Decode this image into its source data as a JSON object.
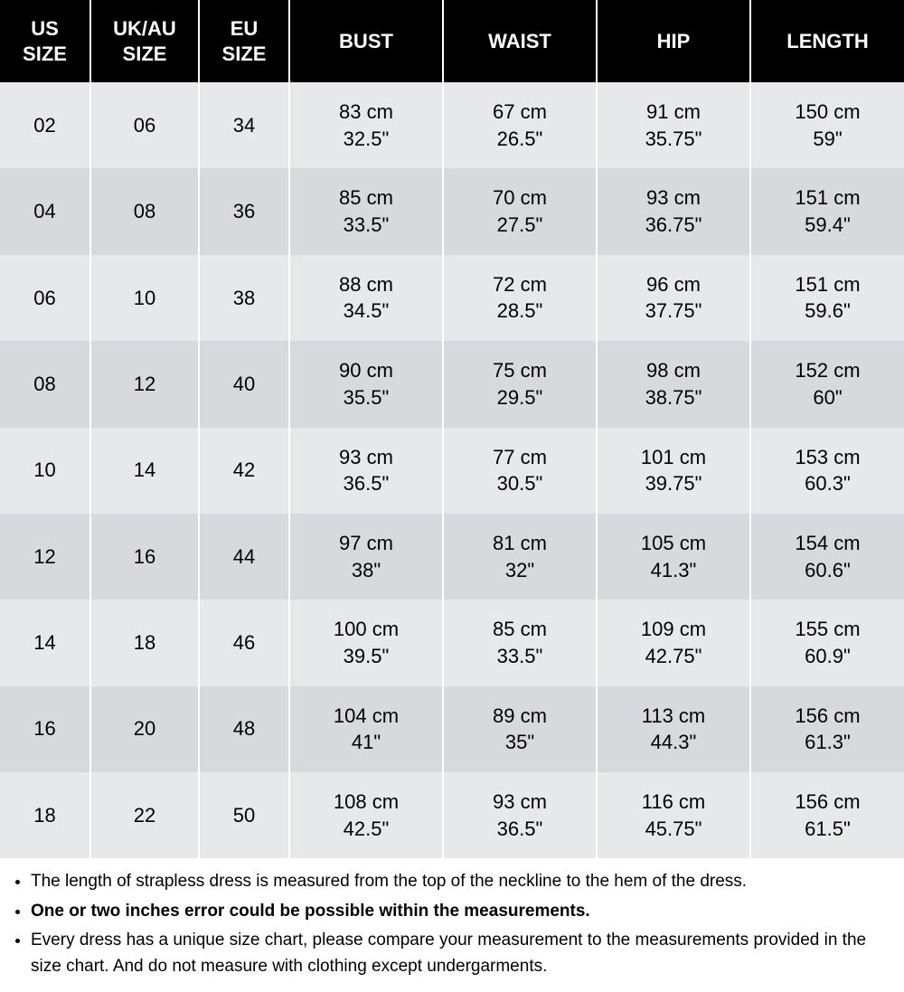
{
  "table": {
    "columns": [
      {
        "key": "us",
        "line1": "US",
        "line2": "SIZE",
        "type": "single"
      },
      {
        "key": "ukau",
        "line1": "UK/AU",
        "line2": "SIZE",
        "type": "single"
      },
      {
        "key": "eu",
        "line1": "EU",
        "line2": "SIZE",
        "type": "single"
      },
      {
        "key": "bust",
        "line1": "BUST",
        "line2": "",
        "type": "dual"
      },
      {
        "key": "waist",
        "line1": "WAIST",
        "line2": "",
        "type": "dual"
      },
      {
        "key": "hip",
        "line1": "HIP",
        "line2": "",
        "type": "dual"
      },
      {
        "key": "length",
        "line1": "LENGTH",
        "line2": "",
        "type": "dual"
      }
    ],
    "rows": [
      {
        "us": "02",
        "ukau": "06",
        "eu": "34",
        "bust": {
          "cm": "83 cm",
          "in": "32.5\""
        },
        "waist": {
          "cm": "67 cm",
          "in": "26.5\""
        },
        "hip": {
          "cm": "91 cm",
          "in": "35.75\""
        },
        "length": {
          "cm": "150 cm",
          "in": "59\""
        }
      },
      {
        "us": "04",
        "ukau": "08",
        "eu": "36",
        "bust": {
          "cm": "85 cm",
          "in": "33.5\""
        },
        "waist": {
          "cm": "70 cm",
          "in": "27.5\""
        },
        "hip": {
          "cm": "93 cm",
          "in": "36.75\""
        },
        "length": {
          "cm": "151 cm",
          "in": "59.4\""
        }
      },
      {
        "us": "06",
        "ukau": "10",
        "eu": "38",
        "bust": {
          "cm": "88 cm",
          "in": "34.5\""
        },
        "waist": {
          "cm": "72 cm",
          "in": "28.5\""
        },
        "hip": {
          "cm": "96 cm",
          "in": "37.75\""
        },
        "length": {
          "cm": "151 cm",
          "in": "59.6\""
        }
      },
      {
        "us": "08",
        "ukau": "12",
        "eu": "40",
        "bust": {
          "cm": "90 cm",
          "in": "35.5\""
        },
        "waist": {
          "cm": "75 cm",
          "in": "29.5\""
        },
        "hip": {
          "cm": "98 cm",
          "in": "38.75\""
        },
        "length": {
          "cm": "152 cm",
          "in": "60\""
        }
      },
      {
        "us": "10",
        "ukau": "14",
        "eu": "42",
        "bust": {
          "cm": "93 cm",
          "in": "36.5\""
        },
        "waist": {
          "cm": "77 cm",
          "in": "30.5\""
        },
        "hip": {
          "cm": "101 cm",
          "in": "39.75\""
        },
        "length": {
          "cm": "153 cm",
          "in": "60.3\""
        }
      },
      {
        "us": "12",
        "ukau": "16",
        "eu": "44",
        "bust": {
          "cm": "97 cm",
          "in": "38\""
        },
        "waist": {
          "cm": "81 cm",
          "in": "32\""
        },
        "hip": {
          "cm": "105 cm",
          "in": "41.3\""
        },
        "length": {
          "cm": "154 cm",
          "in": "60.6\""
        }
      },
      {
        "us": "14",
        "ukau": "18",
        "eu": "46",
        "bust": {
          "cm": "100 cm",
          "in": "39.5\""
        },
        "waist": {
          "cm": "85 cm",
          "in": "33.5\""
        },
        "hip": {
          "cm": "109 cm",
          "in": "42.75\""
        },
        "length": {
          "cm": "155 cm",
          "in": "60.9\""
        }
      },
      {
        "us": "16",
        "ukau": "20",
        "eu": "48",
        "bust": {
          "cm": "104 cm",
          "in": "41\""
        },
        "waist": {
          "cm": "89 cm",
          "in": "35\""
        },
        "hip": {
          "cm": "113 cm",
          "in": "44.3\""
        },
        "length": {
          "cm": "156 cm",
          "in": "61.3\""
        }
      },
      {
        "us": "18",
        "ukau": "22",
        "eu": "50",
        "bust": {
          "cm": "108 cm",
          "in": "42.5\""
        },
        "waist": {
          "cm": "93 cm",
          "in": "36.5\""
        },
        "hip": {
          "cm": "116 cm",
          "in": "45.75\""
        },
        "length": {
          "cm": "156 cm",
          "in": "61.5\""
        }
      }
    ],
    "band_colors": {
      "a": "#e7e8ea",
      "b": "#d8d9dc"
    },
    "header_bg": "#000000",
    "header_fg": "#ffffff"
  },
  "notes": [
    {
      "text": "The length of strapless dress is measured from the top of the neckline to the hem of the dress.",
      "bold": false
    },
    {
      "text": "One or two inches error could be possible within the measurements.",
      "bold": true
    },
    {
      "text": "Every dress has a unique size chart, please compare your measurement to the measurements provided in the size chart. And do not measure with clothing except undergarments.",
      "bold": false
    }
  ]
}
